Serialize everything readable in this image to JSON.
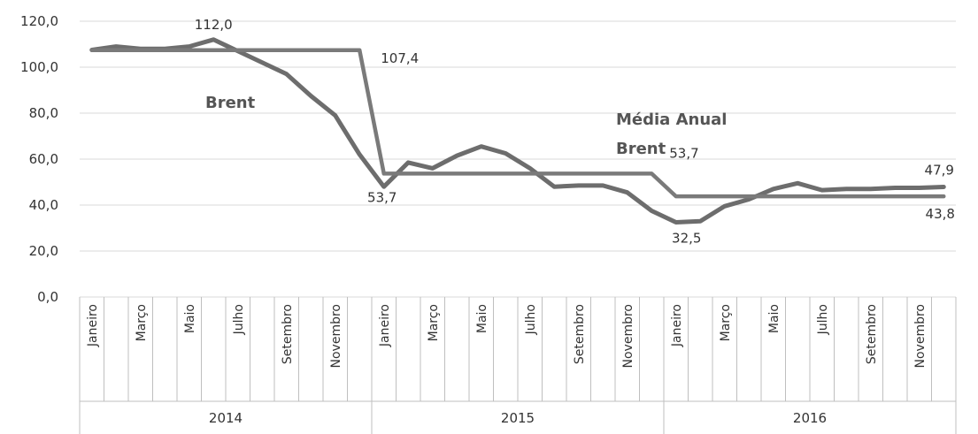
{
  "chart_data": {
    "type": "line",
    "title": "",
    "xlabel": "",
    "ylabel": "",
    "ylim": [
      0,
      120
    ],
    "yticks": [
      "0,0",
      "20,0",
      "40,0",
      "60,0",
      "80,0",
      "100,0",
      "120,0"
    ],
    "grid": true,
    "legend": "none",
    "years": [
      "2014",
      "2015",
      "2016"
    ],
    "months_labeled": [
      "Janeiro",
      "",
      "Março",
      "",
      "Maio",
      "",
      "Julho",
      "",
      "Setembro",
      "",
      "Novembro",
      ""
    ],
    "series": [
      {
        "color": "#6d6d6d",
        "values": [
          107.5,
          109.0,
          108.0,
          108.0,
          109.0,
          112.0,
          107.0,
          102.0,
          97.0,
          87.5,
          79.0,
          62.0,
          48.0,
          58.5,
          56.0,
          61.5,
          65.5,
          62.5,
          56.0,
          48.0,
          48.5,
          48.5,
          45.5,
          37.5,
          32.5,
          33.0,
          39.5,
          42.5,
          47.0,
          49.5,
          46.5,
          47.0,
          47.0,
          47.5,
          47.5,
          47.9
        ]
      },
      {
        "color": "#7a7a7a",
        "values": [
          107.4,
          107.4,
          107.4,
          107.4,
          107.4,
          107.4,
          107.4,
          107.4,
          107.4,
          107.4,
          107.4,
          107.4,
          53.7,
          53.7,
          53.7,
          53.7,
          53.7,
          53.7,
          53.7,
          53.7,
          53.7,
          53.7,
          53.7,
          53.7,
          43.8,
          43.8,
          43.8,
          43.8,
          43.8,
          43.8,
          43.8,
          43.8,
          43.8,
          43.8,
          43.8,
          43.8
        ]
      }
    ],
    "annotations": {
      "brent": "Brent",
      "media_line1": "Média Anual",
      "media_line2": "Brent"
    },
    "data_labels": [
      {
        "series": 0,
        "index": 5,
        "text": "112,0"
      },
      {
        "series": 1,
        "index": 11,
        "text": "107,4"
      },
      {
        "series": 1,
        "index": 12,
        "text": "53,7"
      },
      {
        "series": 1,
        "index": 23,
        "text": "53,7"
      },
      {
        "series": 0,
        "index": 24,
        "text": "32,5"
      },
      {
        "series": 0,
        "index": 35,
        "text": "47,9"
      },
      {
        "series": 1,
        "index": 35,
        "text": "43,8"
      }
    ]
  }
}
